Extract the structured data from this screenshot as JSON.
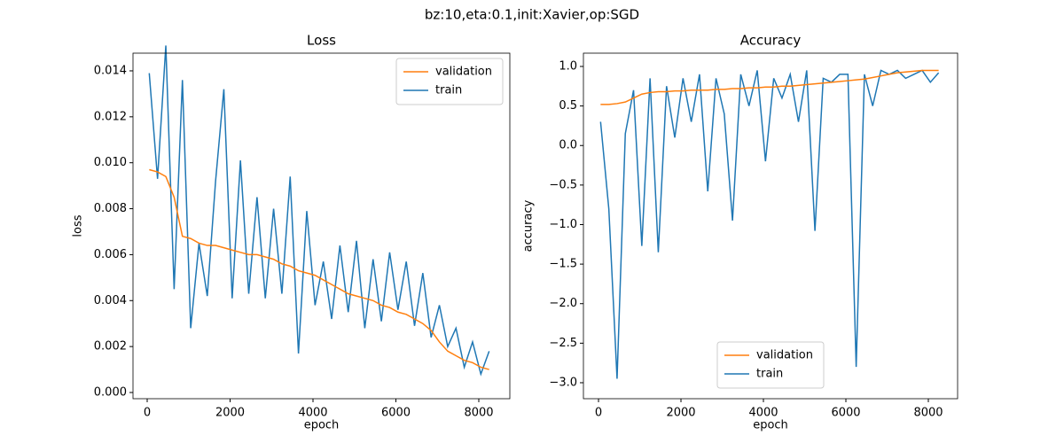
{
  "title": "bz:10,eta:0.1,init:Xavier,op:SGD",
  "chart_data": [
    {
      "type": "line",
      "title": "Loss",
      "x_label": "epoch",
      "y_label": "loss",
      "legend": "upper right",
      "x": [
        50,
        250,
        450,
        650,
        850,
        1050,
        1250,
        1450,
        1650,
        1850,
        2050,
        2250,
        2450,
        2650,
        2850,
        3050,
        3250,
        3450,
        3650,
        3850,
        4050,
        4250,
        4450,
        4650,
        4850,
        5050,
        5250,
        5450,
        5650,
        5850,
        6050,
        6250,
        6450,
        6650,
        6850,
        7050,
        7250,
        7450,
        7650,
        7850,
        8050,
        8250
      ],
      "series": [
        {
          "name": "validation",
          "color": "#ff7f0e",
          "values": [
            0.0097,
            0.0096,
            0.0094,
            0.0085,
            0.0068,
            0.0067,
            0.0065,
            0.0064,
            0.0064,
            0.0063,
            0.0062,
            0.0061,
            0.006,
            0.006,
            0.0059,
            0.0058,
            0.0056,
            0.0055,
            0.0053,
            0.0052,
            0.0051,
            0.0049,
            0.0047,
            0.0045,
            0.0043,
            0.0042,
            0.0041,
            0.004,
            0.0038,
            0.0037,
            0.0035,
            0.0034,
            0.0032,
            0.003,
            0.0027,
            0.0022,
            0.0018,
            0.0016,
            0.0014,
            0.0013,
            0.0011,
            0.001
          ]
        },
        {
          "name": "train",
          "color": "#1f77b4",
          "values": [
            0.0139,
            0.0093,
            0.0151,
            0.0045,
            0.0136,
            0.0028,
            0.0065,
            0.0042,
            0.0092,
            0.0132,
            0.0041,
            0.0101,
            0.0043,
            0.0085,
            0.0041,
            0.008,
            0.0043,
            0.0094,
            0.0017,
            0.0079,
            0.0038,
            0.0057,
            0.0032,
            0.0064,
            0.0035,
            0.0066,
            0.0028,
            0.0058,
            0.0031,
            0.0061,
            0.0036,
            0.0057,
            0.0029,
            0.0052,
            0.0024,
            0.0038,
            0.002,
            0.0028,
            0.0011,
            0.0022,
            0.0008,
            0.0018
          ]
        }
      ],
      "xlim": [
        -342,
        8749
      ],
      "ylim": [
        -0.00027,
        0.01477
      ],
      "xticks": [
        0,
        2000,
        4000,
        6000,
        8000
      ],
      "yticks": [
        {
          "value": 0,
          "label": "0.000"
        },
        0.002,
        0.004,
        0.006,
        0.008,
        {
          "value": 0.01,
          "label": "0.010"
        },
        0.012,
        0.014
      ]
    },
    {
      "type": "line",
      "title": "Accuracy",
      "x_label": "epoch",
      "y_label": "accuracy",
      "legend": "lower center",
      "x": [
        50,
        250,
        450,
        650,
        850,
        1050,
        1250,
        1450,
        1650,
        1850,
        2050,
        2250,
        2450,
        2650,
        2850,
        3050,
        3250,
        3450,
        3650,
        3850,
        4050,
        4250,
        4450,
        4650,
        4850,
        5050,
        5250,
        5450,
        5650,
        5850,
        6050,
        6250,
        6450,
        6650,
        6850,
        7050,
        7250,
        7450,
        7650,
        7850,
        8050,
        8250
      ],
      "series": [
        {
          "name": "validation",
          "color": "#ff7f0e",
          "values": [
            0.52,
            0.52,
            0.53,
            0.55,
            0.6,
            0.65,
            0.67,
            0.68,
            0.68,
            0.69,
            0.69,
            0.7,
            0.7,
            0.7,
            0.71,
            0.71,
            0.72,
            0.72,
            0.73,
            0.73,
            0.74,
            0.74,
            0.75,
            0.75,
            0.76,
            0.77,
            0.78,
            0.79,
            0.8,
            0.81,
            0.82,
            0.83,
            0.84,
            0.86,
            0.88,
            0.9,
            0.92,
            0.93,
            0.94,
            0.95,
            0.95,
            0.95
          ]
        },
        {
          "name": "train",
          "color": "#1f77b4",
          "values": [
            0.3,
            -0.8,
            -2.95,
            0.15,
            0.7,
            -1.27,
            0.85,
            -1.35,
            0.75,
            0.1,
            0.85,
            0.3,
            0.9,
            -0.58,
            0.85,
            0.4,
            -0.95,
            0.9,
            0.5,
            0.95,
            -0.2,
            0.85,
            0.6,
            0.9,
            0.3,
            0.95,
            -1.08,
            0.85,
            0.8,
            0.9,
            0.9,
            -2.8,
            0.9,
            0.5,
            0.95,
            0.9,
            0.95,
            0.85,
            0.9,
            0.95,
            0.8,
            0.92
          ]
        }
      ],
      "xlim": [
        -366,
        8710
      ],
      "ylim": [
        -3.202,
        1.168
      ],
      "xticks": [
        0,
        2000,
        4000,
        6000,
        8000
      ],
      "yticks": [
        {
          "value": 1,
          "label": "1.0"
        },
        0.5,
        {
          "value": 0,
          "label": "0.0"
        },
        {
          "value": -0.5,
          "label": "−0.5"
        },
        {
          "value": -1,
          "label": "−1.0"
        },
        {
          "value": -1.5,
          "label": "−1.5"
        },
        {
          "value": -2,
          "label": "−2.0"
        },
        {
          "value": -2.5,
          "label": "−2.5"
        },
        {
          "value": -3,
          "label": "−3.0"
        }
      ]
    }
  ]
}
